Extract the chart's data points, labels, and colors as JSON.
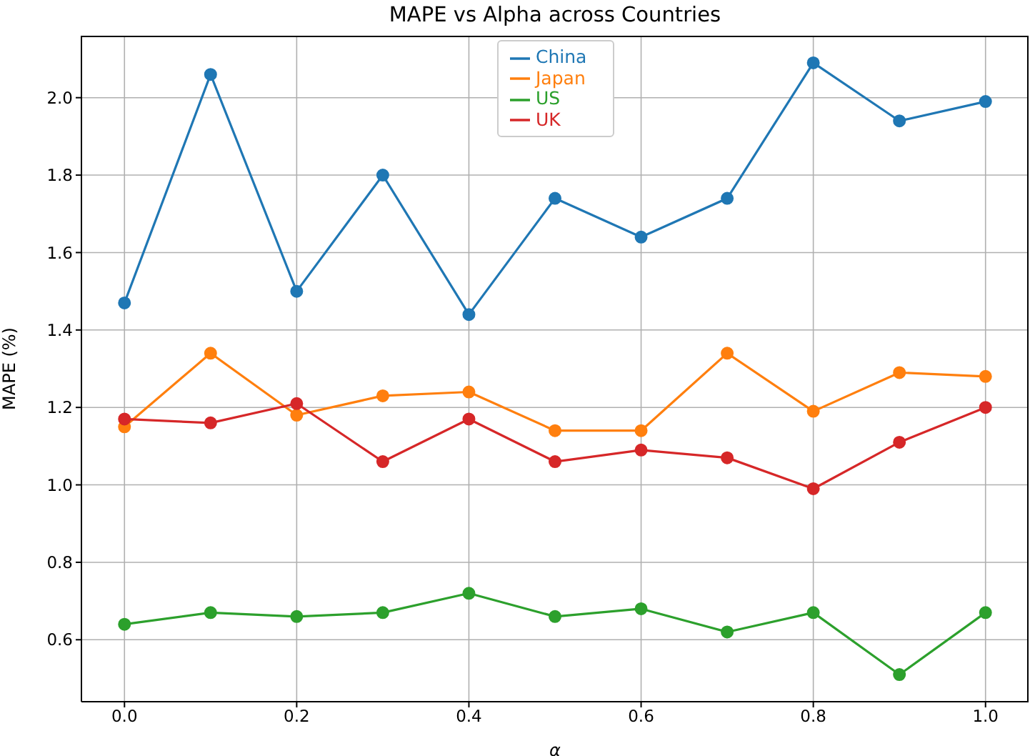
{
  "chart_data": {
    "type": "line",
    "title": "MAPE vs Alpha across Countries",
    "xlabel": "α",
    "ylabel": "MAPE (%)",
    "x": [
      0.0,
      0.1,
      0.2,
      0.3,
      0.4,
      0.5,
      0.6,
      0.7,
      0.8,
      0.9,
      1.0
    ],
    "series": [
      {
        "name": "China",
        "color": "#1f77b4",
        "values": [
          1.47,
          2.06,
          1.5,
          1.8,
          1.44,
          1.74,
          1.64,
          1.74,
          2.09,
          1.94,
          1.99
        ]
      },
      {
        "name": "Japan",
        "color": "#ff7f0e",
        "values": [
          1.15,
          1.34,
          1.18,
          1.23,
          1.24,
          1.14,
          1.14,
          1.34,
          1.19,
          1.29,
          1.28
        ]
      },
      {
        "name": "US",
        "color": "#2ca02c",
        "values": [
          0.64,
          0.67,
          0.66,
          0.67,
          0.72,
          0.66,
          0.68,
          0.62,
          0.67,
          0.51,
          0.67
        ]
      },
      {
        "name": "UK",
        "color": "#d62728",
        "values": [
          1.17,
          1.16,
          1.21,
          1.06,
          1.17,
          1.06,
          1.09,
          1.07,
          0.99,
          1.11,
          1.2
        ]
      }
    ],
    "xlim": [
      -0.05,
      1.05
    ],
    "xticks": [
      {
        "value": 0,
        "label": "0.0"
      },
      {
        "value": 0.2,
        "label": "0.2"
      },
      {
        "value": 0.4,
        "label": "0.4"
      },
      {
        "value": 0.6,
        "label": "0.6"
      },
      {
        "value": 0.8,
        "label": "0.8"
      },
      {
        "value": 1,
        "label": "1.0"
      }
    ],
    "ylim": [
      0.44,
      2.16
    ],
    "yticks": [
      {
        "value": 0.6,
        "label": "0.6"
      },
      {
        "value": 0.8,
        "label": "0.8"
      },
      {
        "value": 1,
        "label": "1.0"
      },
      {
        "value": 1.2,
        "label": "1.2"
      },
      {
        "value": 1.4,
        "label": "1.4"
      },
      {
        "value": 1.6,
        "label": "1.6"
      },
      {
        "value": 1.8,
        "label": "1.8"
      },
      {
        "value": 2,
        "label": "2.0"
      }
    ],
    "grid": true,
    "legend": "top",
    "marker": "circle",
    "line_style": "solid"
  }
}
